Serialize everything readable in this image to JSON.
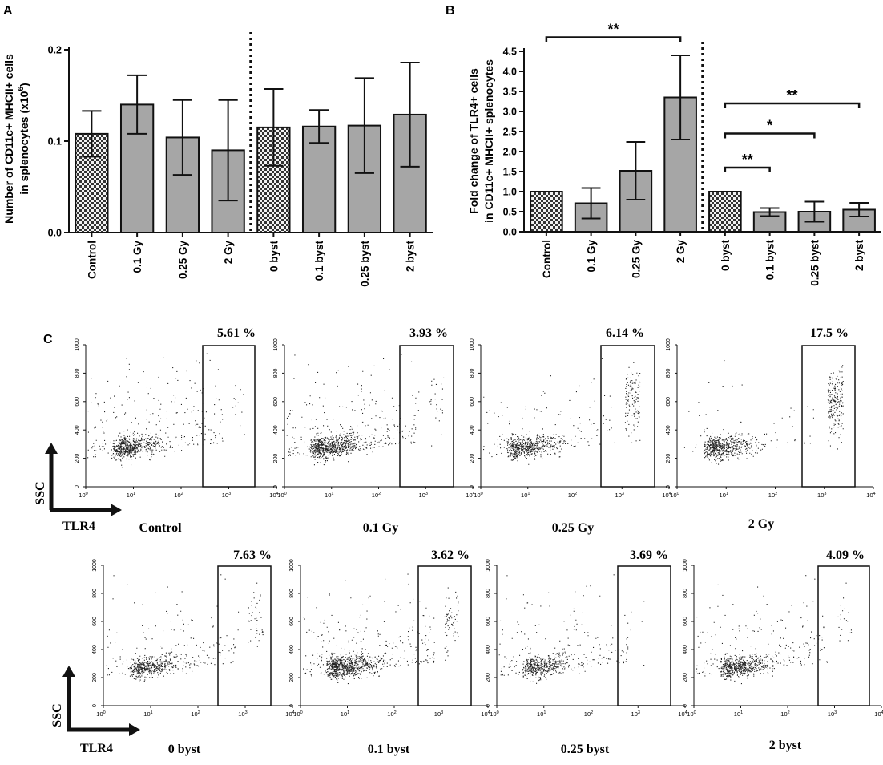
{
  "panels": {
    "a": "A",
    "b": "B",
    "c": "C"
  },
  "colors": {
    "bar_gray": "#a6a6a6",
    "ink": "#111111",
    "dot": "#222222"
  },
  "chart_data": [
    {
      "panel": "A",
      "type": "bar",
      "ylabel_line1": "Number of CD11c+ MHCII+ cells",
      "ylabel_line2": "in splenocytes (x10",
      "ylabel_sup": "6",
      "ylabel_close": ")",
      "ylim": [
        0,
        0.2
      ],
      "yticks": [
        0.0,
        0.1,
        0.2
      ],
      "ytick_labels": [
        "0.0",
        "0.1",
        "0.2"
      ],
      "categories": [
        "Control",
        "0.1 Gy",
        "0.25 Gy",
        "2 Gy",
        "0 byst",
        "0.1 byst",
        "0.25 byst",
        "2 byst"
      ],
      "values": [
        0.108,
        0.14,
        0.104,
        0.09,
        0.115,
        0.116,
        0.117,
        0.129
      ],
      "errors": [
        0.025,
        0.032,
        0.041,
        0.055,
        0.042,
        0.018,
        0.052,
        0.057
      ],
      "patterns": [
        "checker",
        "solid",
        "solid",
        "solid",
        "checker",
        "solid",
        "solid",
        "solid"
      ],
      "divider_after_index": 3,
      "significance": []
    },
    {
      "panel": "B",
      "type": "bar",
      "ylabel_line1": "Fold change of TLR4+ cells",
      "ylabel_line2": "in CD11c+ MHCII+ splenocytes",
      "ylim": [
        0,
        4.5
      ],
      "yticks": [
        0.0,
        0.5,
        1.0,
        1.5,
        2.0,
        2.5,
        3.0,
        3.5,
        4.0,
        4.5
      ],
      "ytick_labels": [
        "0.0",
        "0.5",
        "1.0",
        "1.5",
        "2.0",
        "2.5",
        "3.0",
        "3.5",
        "4.0",
        "4.5"
      ],
      "categories": [
        "Control",
        "0.1 Gy",
        "0.25 Gy",
        "2 Gy",
        "0 byst",
        "0.1 byst",
        "0.25 byst",
        "2 byst"
      ],
      "values": [
        1.0,
        0.71,
        1.52,
        3.35,
        1.0,
        0.49,
        0.5,
        0.55
      ],
      "errors": [
        0.0,
        0.38,
        0.72,
        1.05,
        0.0,
        0.1,
        0.25,
        0.17
      ],
      "patterns": [
        "checker",
        "solid",
        "solid",
        "solid",
        "checker",
        "solid",
        "solid",
        "solid"
      ],
      "divider_after_index": 3,
      "significance": [
        {
          "from": 0,
          "to": 3,
          "label": "**",
          "y": 4.85
        },
        {
          "from": 4,
          "to": 7,
          "label": "**",
          "y": 3.2
        },
        {
          "from": 4,
          "to": 6,
          "label": "*",
          "y": 2.45
        },
        {
          "from": 4,
          "to": 5,
          "label": "**",
          "y": 1.6
        }
      ]
    },
    {
      "panel": "C",
      "type": "scatter",
      "y_axis_label": "SSC",
      "x_axis_label": "TLR4",
      "y_ticks": [
        "0",
        "200",
        "400",
        "600",
        "800",
        "1000"
      ],
      "x_ticks": [
        "10",
        "10",
        "10",
        "10",
        "10"
      ],
      "x_tick_exponents": [
        "0",
        "1",
        "2",
        "3",
        "4"
      ],
      "plots": [
        {
          "label": "Control",
          "gate_percent": "5.61 %"
        },
        {
          "label": "0.1 Gy",
          "gate_percent": "3.93 %"
        },
        {
          "label": "0.25 Gy",
          "gate_percent": "6.14 %"
        },
        {
          "label": "2 Gy",
          "gate_percent": "17.5 %"
        },
        {
          "label": "0 byst",
          "gate_percent": "7.63 %"
        },
        {
          "label": "0.1 byst",
          "gate_percent": "3.62 %"
        },
        {
          "label": "0.25 byst",
          "gate_percent": "3.69 %"
        },
        {
          "label": "2 byst",
          "gate_percent": "4.09 %"
        }
      ]
    }
  ]
}
